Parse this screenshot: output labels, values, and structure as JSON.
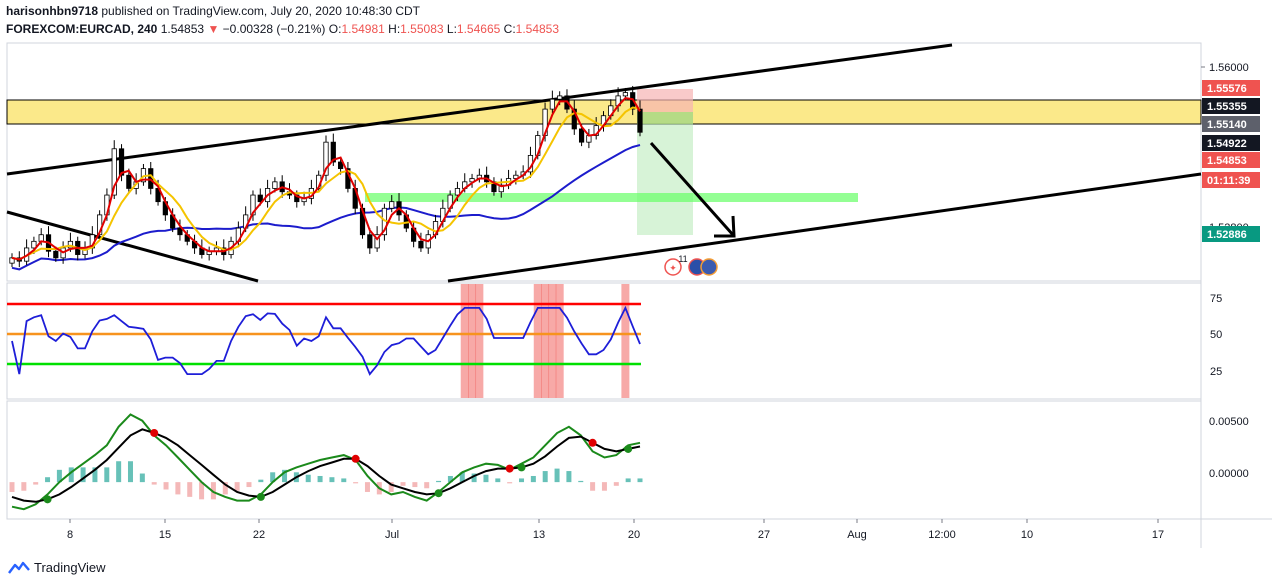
{
  "header": {
    "publisher_line": "harisonhbn9718 published on TradingView.com, July 20, 2020 10:48:30 CDT",
    "publisher_name": "harisonhbn9718",
    "publisher_rest": " published on TradingView.com, July 20, 2020 10:48:30 CDT",
    "symbol": "FOREXCOM:EURCAD, 240",
    "last": "1.54853",
    "change": "−0.00328 (−0.21%)",
    "o_label": "O:",
    "o_value": "1.54981",
    "h_label": "H:",
    "h_value": "1.55083",
    "l_label": "L:",
    "l_value": "1.54665",
    "c_label": "C:",
    "c_value": "1.54853"
  },
  "colors": {
    "up": "#26a69a",
    "down": "#ef5350",
    "candle": "#000000",
    "zone": "#fbe98a",
    "support": "#66ff66",
    "rsi": "#1e1ed8",
    "ma_fast": "#e00000",
    "ma_mid": "#f5c400",
    "ma_slow": "#1c1ccc"
  },
  "price_axis": {
    "ticks": [
      "1.56000",
      "1.52800"
    ],
    "tags": [
      {
        "text": "1.55576",
        "bg": "#ef5350",
        "fg": "#ffffff"
      },
      {
        "text": "1.55355",
        "bg": "#131722",
        "fg": "#ffffff"
      },
      {
        "text": "1.55140",
        "bg": "#5d606b",
        "fg": "#ffffff"
      },
      {
        "text": "1.54922",
        "bg": "#131722",
        "fg": "#ffffff"
      },
      {
        "text": "1.54853",
        "bg": "#ef5350",
        "fg": "#ffffff"
      },
      {
        "text": "01:11:39",
        "bg": "#ef5350",
        "fg": "#ffffff"
      },
      {
        "text": "1.52886",
        "bg": "#089981",
        "fg": "#ffffff"
      }
    ]
  },
  "rsi_axis": {
    "ticks": [
      "75",
      "50",
      "25"
    ]
  },
  "macd_axis": {
    "ticks": [
      "0.00500",
      "0.00000"
    ]
  },
  "time_axis": {
    "labels": [
      "8",
      "15",
      "22",
      "Jul",
      "13",
      "20",
      "27",
      "Aug",
      "12:00",
      "10",
      "17"
    ]
  },
  "event_badge": {
    "count": "11"
  },
  "footer": {
    "brand": "TradingView"
  },
  "chart_data": {
    "type": "candlestick",
    "symbol": "FOREXCOM:EURCAD",
    "interval": "240",
    "y_range": [
      1.526,
      1.562
    ],
    "rsi_levels": [
      70,
      50,
      30
    ],
    "rsi_range": [
      15,
      85
    ],
    "macd_range": [
      -0.003,
      0.0066
    ],
    "zones": {
      "resistance": [
        1.5514,
        1.55576
      ],
      "support_mid": 1.5425,
      "target": 1.52886
    },
    "close": [
      1.5295,
      1.529,
      1.531,
      1.532,
      1.533,
      1.5305,
      1.5295,
      1.531,
      1.532,
      1.53,
      1.531,
      1.533,
      1.536,
      1.539,
      1.546,
      1.542,
      1.54,
      1.541,
      1.543,
      1.54,
      1.538,
      1.536,
      1.534,
      1.533,
      1.532,
      1.531,
      1.53,
      1.5305,
      1.531,
      1.53,
      1.532,
      1.534,
      1.536,
      1.539,
      1.538,
      1.54,
      1.541,
      1.5395,
      1.539,
      1.538,
      1.5385,
      1.54,
      1.542,
      1.547,
      1.544,
      1.543,
      1.54,
      1.537,
      1.533,
      1.531,
      1.533,
      1.537,
      1.538,
      1.536,
      1.534,
      1.532,
      1.531,
      1.533,
      1.535,
      1.537,
      1.539,
      1.54,
      1.541,
      1.5415,
      1.542,
      1.541,
      1.5395,
      1.5405,
      1.5415,
      1.542,
      1.5425,
      1.545,
      1.548,
      1.552,
      1.5535,
      1.554,
      1.552,
      1.549,
      1.547,
      1.548,
      1.5495,
      1.551,
      1.5525,
      1.554,
      1.5545,
      1.552,
      1.5485
    ],
    "macd": [
      -0.002,
      -0.0022,
      -0.0018,
      -0.001,
      0.0,
      0.0008,
      0.0015,
      0.0022,
      0.003,
      0.0045,
      0.0055,
      0.005,
      0.0038,
      0.003,
      0.002,
      0.001,
      0.0,
      -0.0008,
      -0.0012,
      -0.0015,
      -0.0015,
      -0.001,
      0.0,
      0.0008,
      0.0012,
      0.0015,
      0.0018,
      0.002,
      0.0022,
      0.0018,
      0.0005,
      -0.0005,
      -0.001,
      -0.0008,
      -0.0012,
      -0.0015,
      -0.0008,
      0.0,
      0.0008,
      0.0012,
      0.0015,
      0.0014,
      0.001,
      0.0015,
      0.002,
      0.003,
      0.004,
      0.0045,
      0.0038,
      0.0025,
      0.002,
      0.0022,
      0.003,
      0.0032
    ],
    "signal": [
      -0.0012,
      -0.0015,
      -0.0016,
      -0.0014,
      -0.001,
      -0.0004,
      0.0003,
      0.001,
      0.0018,
      0.0028,
      0.0038,
      0.0043,
      0.004,
      0.0036,
      0.003,
      0.0022,
      0.0014,
      0.0006,
      -0.0002,
      -0.0008,
      -0.0011,
      -0.0012,
      -0.0008,
      -0.0002,
      0.0004,
      0.0009,
      0.0013,
      0.0016,
      0.0019,
      0.0019,
      0.0013,
      0.0005,
      -0.0002,
      -0.0005,
      -0.0008,
      -0.001,
      -0.0009,
      -0.0005,
      0.0,
      0.0005,
      0.0009,
      0.0011,
      0.0011,
      0.0012,
      0.0015,
      0.0021,
      0.0029,
      0.0036,
      0.0037,
      0.0032,
      0.0027,
      0.0025,
      0.0027,
      0.0029
    ]
  }
}
